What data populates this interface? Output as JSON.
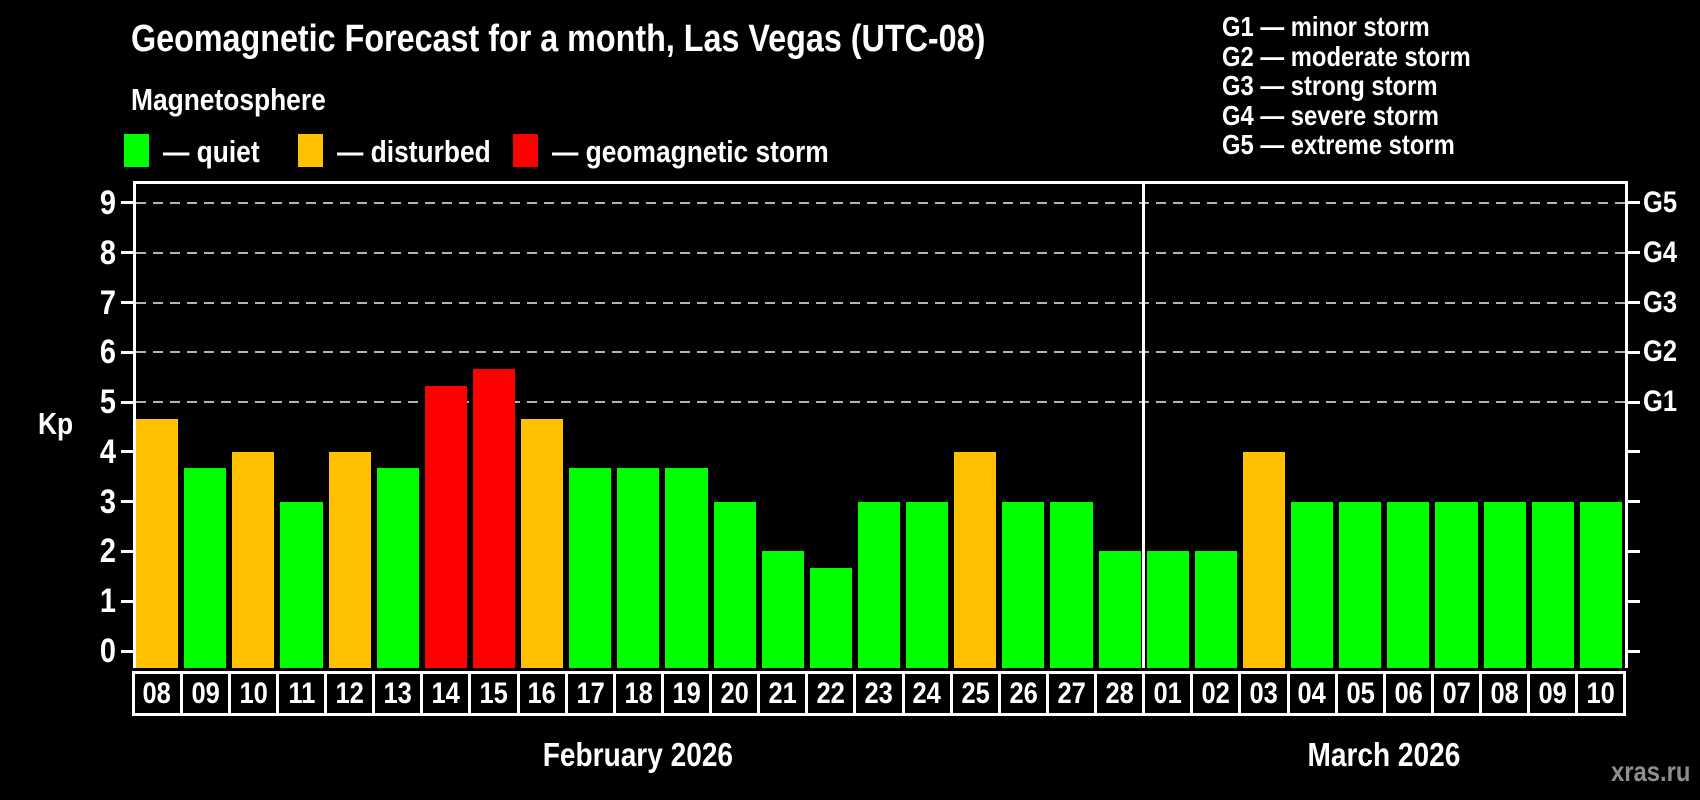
{
  "header": {
    "title": "Geomagnetic Forecast for a month, Las Vegas (UTC-08)",
    "subtitle": "Magnetosphere"
  },
  "legend": {
    "items": [
      {
        "label": "— quiet",
        "status": "quiet",
        "color": "#00ff00"
      },
      {
        "label": "— disturbed",
        "status": "disturbed",
        "color": "#ffc000"
      },
      {
        "label": "— geomagnetic storm",
        "status": "storm",
        "color": "#ff0000"
      }
    ]
  },
  "g_legend": {
    "lines": [
      "G1 — minor storm",
      "G2 — moderate storm",
      "G3 — strong storm",
      "G4 — severe storm",
      "G5 — extreme storm"
    ]
  },
  "watermark": "xras.ru",
  "chart_data": {
    "type": "bar",
    "title": "Geomagnetic Forecast for a month, Las Vegas (UTC-08)",
    "subtitle": "Magnetosphere",
    "xlabel": "",
    "ylabel": "Kp",
    "ylim": [
      0,
      9
    ],
    "yticks": [
      0,
      1,
      2,
      3,
      4,
      5,
      6,
      7,
      8,
      9
    ],
    "gridlines_at_kp": [
      5,
      6,
      7,
      8,
      9
    ],
    "grid": "dashed",
    "legend_position": "top-left",
    "right_axis_labels": [
      {
        "kp": 5,
        "label": "G1"
      },
      {
        "kp": 6,
        "label": "G2"
      },
      {
        "kp": 7,
        "label": "G3"
      },
      {
        "kp": 8,
        "label": "G4"
      },
      {
        "kp": 9,
        "label": "G5"
      }
    ],
    "color_map": {
      "quiet": "#00ff00",
      "disturbed": "#ffc000",
      "storm": "#ff0000"
    },
    "months": [
      {
        "label": "February 2026",
        "categories": [
          "08",
          "09",
          "10",
          "11",
          "12",
          "13",
          "14",
          "15",
          "16",
          "17",
          "18",
          "19",
          "20",
          "21",
          "22",
          "23",
          "24",
          "25",
          "26",
          "27",
          "28"
        ],
        "values": [
          4.67,
          3.67,
          4,
          3,
          4,
          3.67,
          5.33,
          5.67,
          4.67,
          3.67,
          3.67,
          3.67,
          3,
          2,
          1.67,
          3,
          3,
          4,
          3,
          3,
          2
        ],
        "statuses": [
          "disturbed",
          "quiet",
          "disturbed",
          "quiet",
          "disturbed",
          "quiet",
          "storm",
          "storm",
          "disturbed",
          "quiet",
          "quiet",
          "quiet",
          "quiet",
          "quiet",
          "quiet",
          "quiet",
          "quiet",
          "disturbed",
          "quiet",
          "quiet",
          "quiet"
        ]
      },
      {
        "label": "March 2026",
        "categories": [
          "01",
          "02",
          "03",
          "04",
          "05",
          "06",
          "07",
          "08",
          "09",
          "10"
        ],
        "values": [
          2,
          2,
          4,
          3,
          3,
          3,
          3,
          3,
          3,
          3
        ],
        "statuses": [
          "quiet",
          "quiet",
          "disturbed",
          "quiet",
          "quiet",
          "quiet",
          "quiet",
          "quiet",
          "quiet",
          "quiet"
        ]
      }
    ]
  }
}
